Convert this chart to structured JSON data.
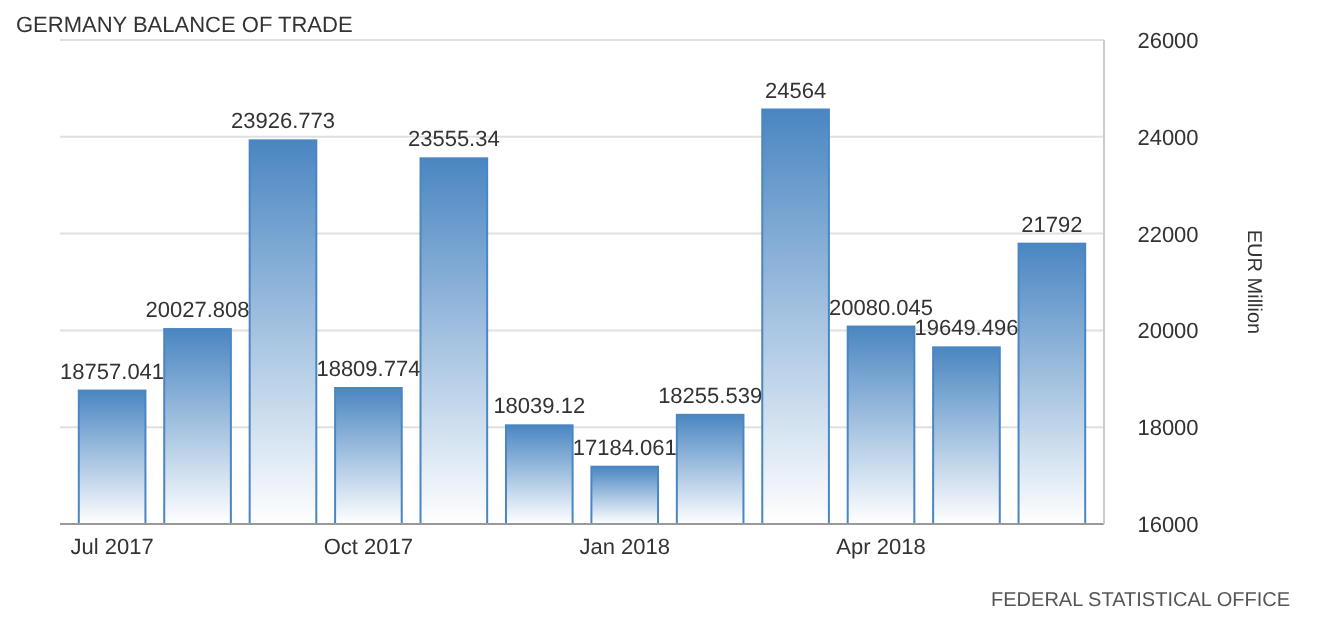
{
  "chart_data": {
    "type": "bar",
    "title": "GERMANY BALANCE OF TRADE",
    "ylabel": "EUR Million",
    "annotations": [
      "FEDERAL STATISTICAL OFFICE"
    ],
    "categories": [
      "Jul 2017",
      null,
      null,
      "Oct 2017",
      null,
      null,
      "Jan 2018",
      null,
      null,
      "Apr 2018",
      null,
      null
    ],
    "values": [
      18757.041,
      20027.808,
      23926.773,
      18809.774,
      23555.34,
      18039.12,
      17184.061,
      18255.539,
      24564,
      20080.045,
      19649.496,
      21792
    ],
    "color": "#4a86c2",
    "ylim": [
      16000,
      26000
    ],
    "yticks": [
      16000,
      18000,
      20000,
      22000,
      24000,
      26000
    ],
    "grid": "y",
    "data_labels": true
  }
}
